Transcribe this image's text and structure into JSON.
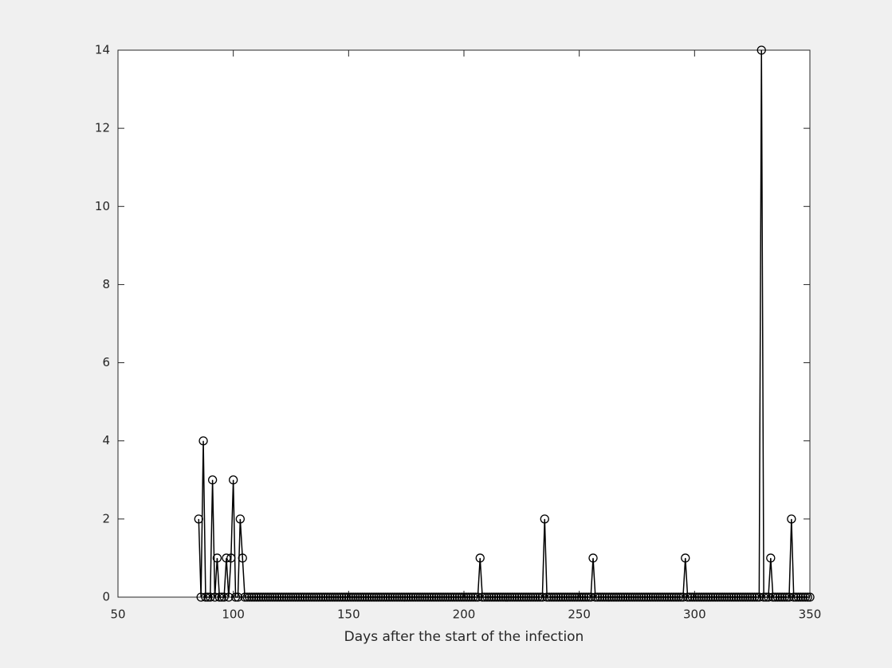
{
  "chart_data": {
    "type": "line",
    "xlabel": "Days after the start of the infection",
    "x": [
      85,
      86,
      87,
      88,
      89,
      90,
      91,
      92,
      93,
      94,
      95,
      96,
      97,
      98,
      99,
      100,
      101,
      102,
      103,
      104,
      105,
      106,
      107,
      108,
      109,
      110,
      111,
      112,
      113,
      114,
      115,
      116,
      117,
      118,
      119,
      120,
      121,
      122,
      123,
      124,
      125,
      126,
      127,
      128,
      129,
      130,
      131,
      132,
      133,
      134,
      135,
      136,
      137,
      138,
      139,
      140,
      141,
      142,
      143,
      144,
      145,
      146,
      147,
      148,
      149,
      150,
      151,
      152,
      153,
      154,
      155,
      156,
      157,
      158,
      159,
      160,
      161,
      162,
      163,
      164,
      165,
      166,
      167,
      168,
      169,
      170,
      171,
      172,
      173,
      174,
      175,
      176,
      177,
      178,
      179,
      180,
      181,
      182,
      183,
      184,
      185,
      186,
      187,
      188,
      189,
      190,
      191,
      192,
      193,
      194,
      195,
      196,
      197,
      198,
      199,
      200,
      201,
      202,
      203,
      204,
      205,
      206,
      207,
      208,
      209,
      210,
      211,
      212,
      213,
      214,
      215,
      216,
      217,
      218,
      219,
      220,
      221,
      222,
      223,
      224,
      225,
      226,
      227,
      228,
      229,
      230,
      231,
      232,
      233,
      234,
      235,
      236,
      237,
      238,
      239,
      240,
      241,
      242,
      243,
      244,
      245,
      246,
      247,
      248,
      249,
      250,
      251,
      252,
      253,
      254,
      255,
      256,
      257,
      258,
      259,
      260,
      261,
      262,
      263,
      264,
      265,
      266,
      267,
      268,
      269,
      270,
      271,
      272,
      273,
      274,
      275,
      276,
      277,
      278,
      279,
      280,
      281,
      282,
      283,
      284,
      285,
      286,
      287,
      288,
      289,
      290,
      291,
      292,
      293,
      294,
      295,
      296,
      297,
      298,
      299,
      300,
      301,
      302,
      303,
      304,
      305,
      306,
      307,
      308,
      309,
      310,
      311,
      312,
      313,
      314,
      315,
      316,
      317,
      318,
      319,
      320,
      321,
      322,
      323,
      324,
      325,
      326,
      327,
      328,
      329,
      330,
      331,
      332,
      333,
      334,
      335,
      336,
      337,
      338,
      339,
      340,
      341,
      342,
      343,
      344,
      345,
      346,
      347,
      348,
      349,
      350
    ],
    "values": [
      2,
      0,
      4,
      0,
      0,
      0,
      3,
      0,
      1,
      0,
      0,
      0,
      1,
      0,
      1,
      3,
      0,
      0,
      2,
      1,
      0,
      0,
      0,
      0,
      0,
      0,
      0,
      0,
      0,
      0,
      0,
      0,
      0,
      0,
      0,
      0,
      0,
      0,
      0,
      0,
      0,
      0,
      0,
      0,
      0,
      0,
      0,
      0,
      0,
      0,
      0,
      0,
      0,
      0,
      0,
      0,
      0,
      0,
      0,
      0,
      0,
      0,
      0,
      0,
      0,
      0,
      0,
      0,
      0,
      0,
      0,
      0,
      0,
      0,
      0,
      0,
      0,
      0,
      0,
      0,
      0,
      0,
      0,
      0,
      0,
      0,
      0,
      0,
      0,
      0,
      0,
      0,
      0,
      0,
      0,
      0,
      0,
      0,
      0,
      0,
      0,
      0,
      0,
      0,
      0,
      0,
      0,
      0,
      0,
      0,
      0,
      0,
      0,
      0,
      0,
      0,
      0,
      0,
      0,
      0,
      0,
      0,
      1,
      0,
      0,
      0,
      0,
      0,
      0,
      0,
      0,
      0,
      0,
      0,
      0,
      0,
      0,
      0,
      0,
      0,
      0,
      0,
      0,
      0,
      0,
      0,
      0,
      0,
      0,
      0,
      2,
      0,
      0,
      0,
      0,
      0,
      0,
      0,
      0,
      0,
      0,
      0,
      0,
      0,
      0,
      0,
      0,
      0,
      0,
      0,
      0,
      1,
      0,
      0,
      0,
      0,
      0,
      0,
      0,
      0,
      0,
      0,
      0,
      0,
      0,
      0,
      0,
      0,
      0,
      0,
      0,
      0,
      0,
      0,
      0,
      0,
      0,
      0,
      0,
      0,
      0,
      0,
      0,
      0,
      0,
      0,
      0,
      0,
      0,
      0,
      0,
      1,
      0,
      0,
      0,
      0,
      0,
      0,
      0,
      0,
      0,
      0,
      0,
      0,
      0,
      0,
      0,
      0,
      0,
      0,
      0,
      0,
      0,
      0,
      0,
      0,
      0,
      0,
      0,
      0,
      0,
      0,
      0,
      0,
      14,
      0,
      0,
      0,
      1,
      0,
      0,
      0,
      0,
      0,
      0,
      0,
      0,
      2,
      0,
      0,
      0,
      0,
      0,
      0,
      0,
      0
    ],
    "color": "#000000",
    "xlim": [
      50,
      350
    ],
    "xticks": [
      50,
      100,
      150,
      200,
      250,
      300,
      350
    ],
    "ylim": [
      0,
      14
    ],
    "yticks": [
      0,
      2,
      4,
      6,
      8,
      10,
      12,
      14
    ]
  }
}
